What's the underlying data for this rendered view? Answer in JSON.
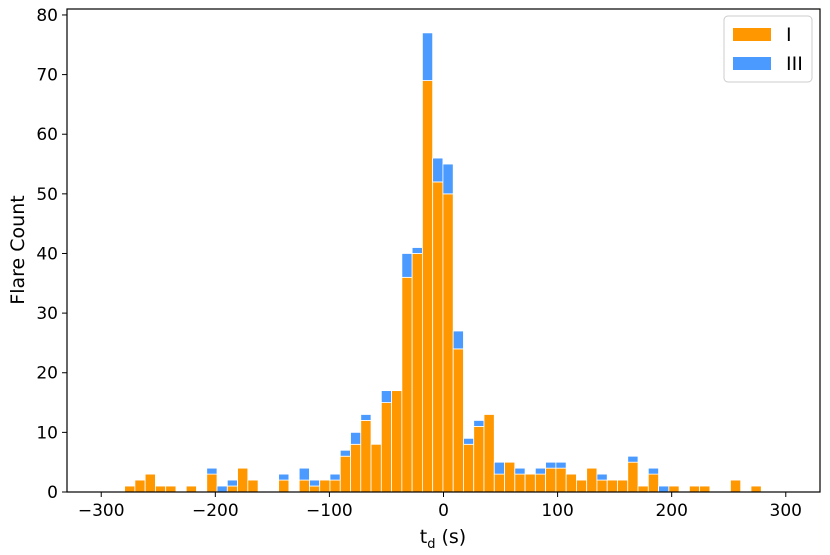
{
  "chart_data": {
    "type": "bar",
    "stacked": true,
    "title": "",
    "xlabel_main": "t",
    "xlabel_sub": "d",
    "xlabel_unit": "(s)",
    "ylabel": "Flare Count",
    "xlim": [
      -330,
      330
    ],
    "ylim": [
      0,
      81
    ],
    "bin_width": 9,
    "xticks": [
      -300,
      -200,
      -100,
      0,
      100,
      200,
      300
    ],
    "yticks": [
      0,
      10,
      20,
      30,
      40,
      50,
      60,
      70,
      80
    ],
    "grid": false,
    "legend_position": "top-right",
    "x": [
      -275,
      -266,
      -257,
      -248,
      -239,
      -221,
      -203,
      -194,
      -185,
      -176,
      -167,
      -140,
      -122,
      -113,
      -104,
      -95,
      -86,
      -77,
      -68,
      -59,
      -50,
      -41,
      -32,
      -23,
      -14,
      -5,
      4,
      13,
      22,
      31,
      40,
      49,
      58,
      67,
      76,
      85,
      94,
      103,
      112,
      121,
      130,
      139,
      148,
      157,
      166,
      175,
      184,
      193,
      202,
      211,
      220,
      229,
      247,
      256,
      274,
      283
    ],
    "series": [
      {
        "name": "I",
        "color": "#ff9800",
        "values": [
          1,
          2,
          3,
          1,
          1,
          1,
          3,
          0,
          1,
          4,
          2,
          2,
          2,
          1,
          2,
          2,
          6,
          8,
          12,
          8,
          15,
          17,
          36,
          40,
          69,
          52,
          50,
          24,
          8,
          11,
          13,
          3,
          5,
          3,
          3,
          3,
          4,
          4,
          3,
          2,
          4,
          2,
          2,
          2,
          5,
          1,
          3,
          0,
          1,
          0,
          1,
          1,
          0,
          2,
          1,
          0
        ]
      },
      {
        "name": "III",
        "color": "#4a9aff",
        "values": [
          0,
          0,
          0,
          0,
          0,
          0,
          1,
          1,
          1,
          0,
          0,
          1,
          2,
          1,
          0,
          1,
          1,
          2,
          1,
          0,
          2,
          0,
          4,
          1,
          8,
          4,
          5,
          3,
          1,
          1,
          0,
          2,
          0,
          1,
          0,
          1,
          1,
          1,
          0,
          0,
          0,
          1,
          0,
          0,
          1,
          0,
          1,
          1,
          0,
          0,
          0,
          0,
          0,
          0,
          0,
          0
        ]
      }
    ]
  }
}
